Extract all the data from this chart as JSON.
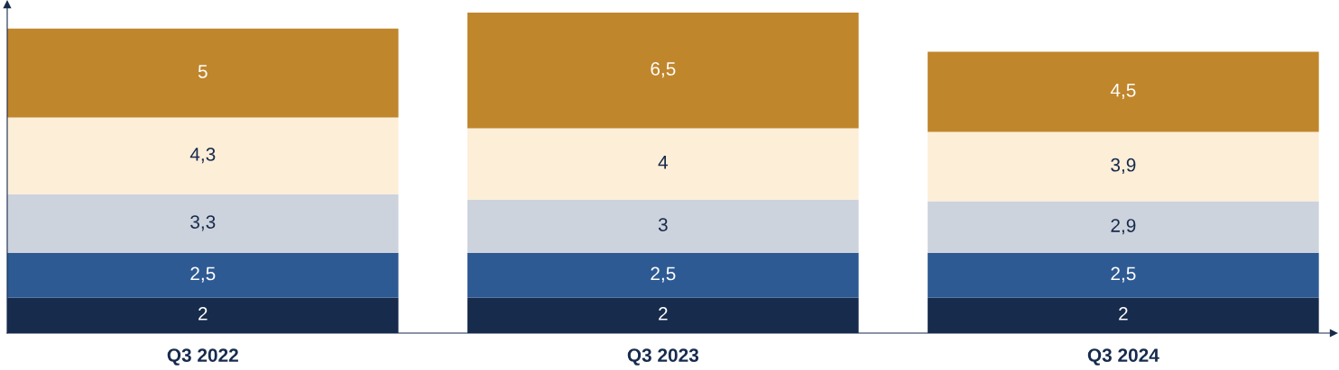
{
  "chart_data": {
    "type": "bar",
    "stacked": true,
    "categories": [
      "Q3 2022",
      "Q3 2023",
      "Q3 2024"
    ],
    "series": [
      {
        "color": "#172b4d",
        "values": [
          2,
          2,
          2
        ],
        "value_labels": [
          "2",
          "2",
          "2"
        ]
      },
      {
        "color": "#2e5a94",
        "values": [
          2.5,
          2.5,
          2.5
        ],
        "value_labels": [
          "2,5",
          "2,5",
          "2,5"
        ]
      },
      {
        "color": "#cdd3dc",
        "values": [
          3.3,
          3,
          2.9
        ],
        "value_labels": [
          "3,3",
          "3",
          "2,9"
        ]
      },
      {
        "color": "#fdeed8",
        "values": [
          4.3,
          4,
          3.9
        ],
        "value_labels": [
          "4,3",
          "4",
          "3,9"
        ]
      },
      {
        "color": "#c0862c",
        "values": [
          5,
          6.5,
          4.5
        ],
        "value_labels": [
          "5",
          "6,5",
          "4,5"
        ]
      }
    ],
    "tick_labels": "x",
    "grid": false,
    "legend": false
  }
}
